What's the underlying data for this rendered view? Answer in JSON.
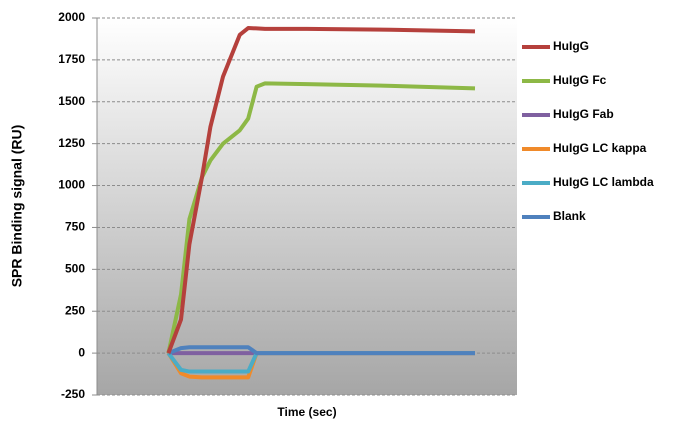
{
  "chart_data": {
    "type": "line",
    "x_label": "Time (sec)",
    "y_label": "SPR Binding signal (RU)",
    "x": [
      17,
      20,
      22,
      25,
      27,
      30,
      34,
      36,
      38,
      40,
      50,
      70,
      90
    ],
    "xlim": [
      0,
      100
    ],
    "ylim": [
      -250,
      2000
    ],
    "yticks": [
      -250,
      0,
      250,
      500,
      750,
      1000,
      1250,
      1500,
      1750,
      2000
    ],
    "grid": true,
    "legend": "right",
    "series": [
      {
        "name": "HuIgG",
        "color": "#b5403c",
        "values": [
          0,
          200,
          650,
          1050,
          1350,
          1650,
          1900,
          1940,
          1938,
          1935,
          1935,
          1930,
          1920
        ]
      },
      {
        "name": "HuIgG Fc",
        "color": "#8db846",
        "values": [
          0,
          350,
          800,
          1050,
          1150,
          1250,
          1330,
          1400,
          1590,
          1610,
          1605,
          1595,
          1580
        ]
      },
      {
        "name": "HuIgG Fab",
        "color": "#7f60a0",
        "values": [
          0,
          0,
          0,
          0,
          0,
          0,
          0,
          0,
          0,
          0,
          0,
          0,
          0
        ]
      },
      {
        "name": "HuIgG LC kappa",
        "color": "#f08a2a",
        "values": [
          0,
          -120,
          -140,
          -145,
          -145,
          -145,
          -145,
          -145,
          0,
          0,
          0,
          0,
          0
        ]
      },
      {
        "name": "HuIgG LC lambda",
        "color": "#4bacc6",
        "values": [
          0,
          -100,
          -110,
          -110,
          -110,
          -110,
          -110,
          -110,
          0,
          0,
          0,
          0,
          0
        ]
      },
      {
        "name": "Blank",
        "color": "#4f81bd",
        "values": [
          0,
          30,
          35,
          35,
          35,
          35,
          35,
          35,
          0,
          0,
          0,
          0,
          0
        ]
      }
    ]
  }
}
